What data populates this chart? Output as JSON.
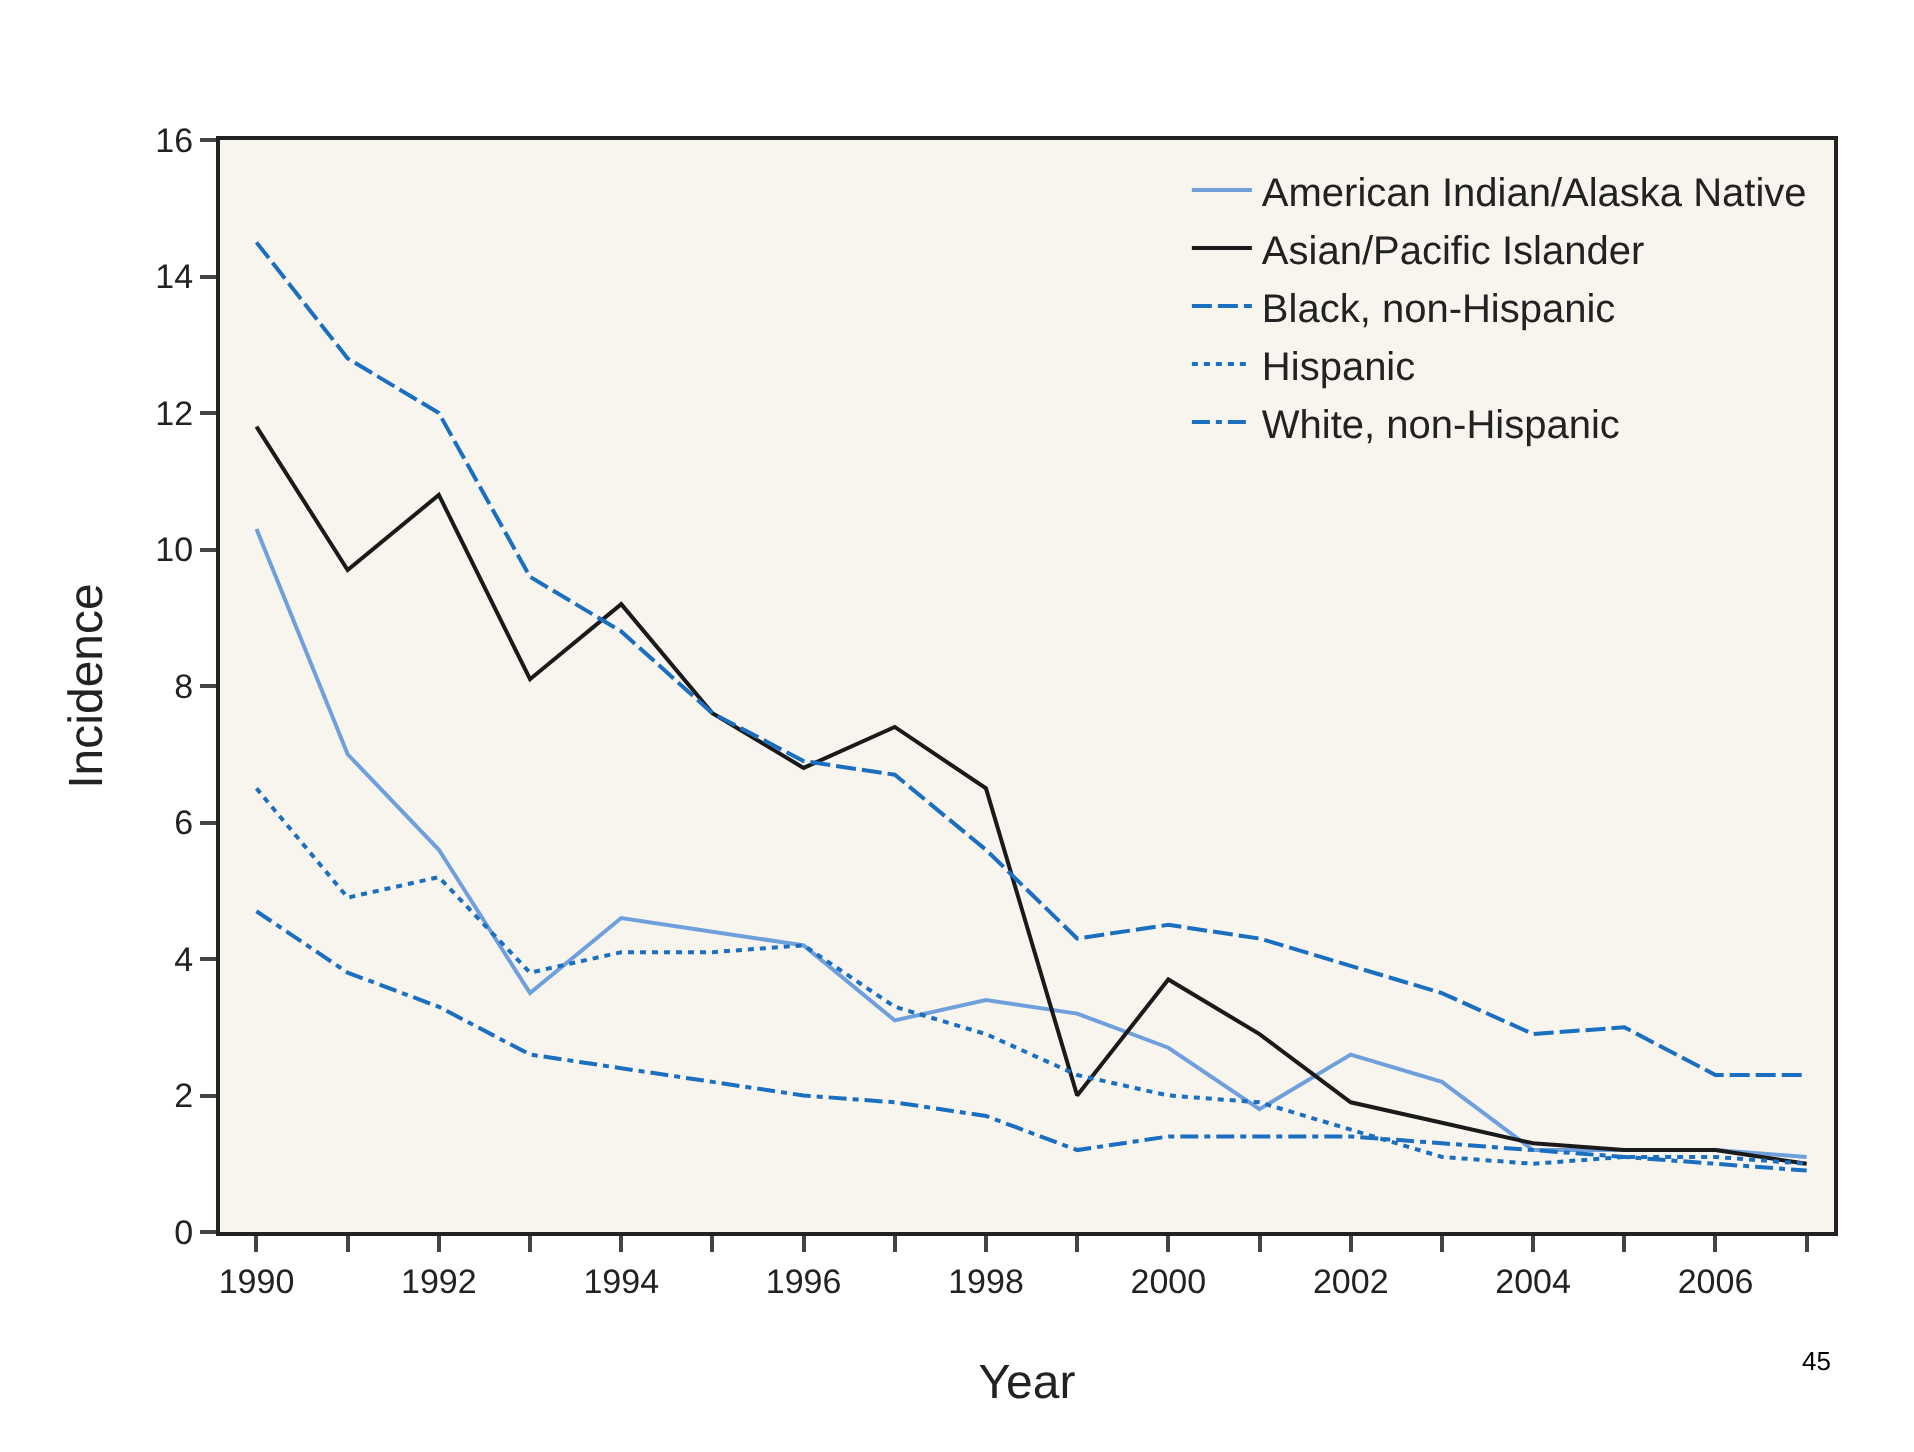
{
  "chart_data": {
    "type": "line",
    "xlabel": "Year",
    "ylabel": "Incidence",
    "x": [
      1990,
      1991,
      1992,
      1993,
      1994,
      1995,
      1996,
      1997,
      1998,
      1999,
      2000,
      2001,
      2002,
      2003,
      2004,
      2005,
      2006,
      2007
    ],
    "series": [
      {
        "name": "American Indian/Alaska Native",
        "color": "#6fa0dc",
        "line_style": "solid",
        "values": [
          10.3,
          7.0,
          5.6,
          3.5,
          4.6,
          4.4,
          4.2,
          3.1,
          3.4,
          3.2,
          2.7,
          1.8,
          2.6,
          2.2,
          1.2,
          1.2,
          1.2,
          1.1
        ]
      },
      {
        "name": "Asian/Pacific Islander",
        "color": "#1a1a1a",
        "line_style": "solid",
        "values": [
          11.8,
          9.7,
          10.8,
          8.1,
          9.2,
          7.6,
          6.8,
          7.4,
          6.5,
          2.0,
          3.7,
          2.9,
          1.9,
          1.6,
          1.3,
          1.2,
          1.2,
          1.0
        ]
      },
      {
        "name": "Black, non-Hispanic",
        "color": "#1a6fc0",
        "line_style": "dashed",
        "values": [
          14.5,
          12.8,
          12.0,
          9.6,
          8.8,
          7.6,
          6.9,
          6.7,
          5.6,
          4.3,
          4.5,
          4.3,
          3.9,
          3.5,
          2.9,
          3.0,
          2.3,
          2.3
        ]
      },
      {
        "name": "Hispanic",
        "color": "#1a6fc0",
        "line_style": "dotted",
        "values": [
          6.5,
          4.9,
          5.2,
          3.8,
          4.1,
          4.1,
          4.2,
          3.3,
          2.9,
          2.3,
          2.0,
          1.9,
          1.5,
          1.1,
          1.0,
          1.1,
          1.1,
          1.0
        ]
      },
      {
        "name": "White, non-Hispanic",
        "color": "#1a6fc0",
        "line_style": "dashdot",
        "values": [
          4.7,
          3.8,
          3.3,
          2.6,
          2.4,
          2.2,
          2.0,
          1.9,
          1.7,
          1.2,
          1.4,
          1.4,
          1.4,
          1.3,
          1.2,
          1.1,
          1.0,
          0.9
        ]
      }
    ],
    "xlim": [
      1989.6,
      2007.3
    ],
    "xticks": [
      1990,
      {
        "value": 1991,
        "label": null
      },
      1992,
      {
        "value": 1993,
        "label": null
      },
      1994,
      {
        "value": 1995,
        "label": null
      },
      1996,
      {
        "value": 1997,
        "label": null
      },
      1998,
      {
        "value": 1999,
        "label": null
      },
      2000,
      {
        "value": 2001,
        "label": null
      },
      2002,
      {
        "value": 2003,
        "label": null
      },
      2004,
      {
        "value": 2005,
        "label": null
      },
      2006,
      {
        "value": 2007,
        "label": null
      }
    ],
    "ylim": [
      0,
      16
    ],
    "yticks": [
      0,
      2,
      4,
      6,
      8,
      10,
      12,
      14,
      16
    ],
    "grid": false,
    "legend": "top right",
    "marker": "none",
    "annotations": [
      "45"
    ]
  }
}
